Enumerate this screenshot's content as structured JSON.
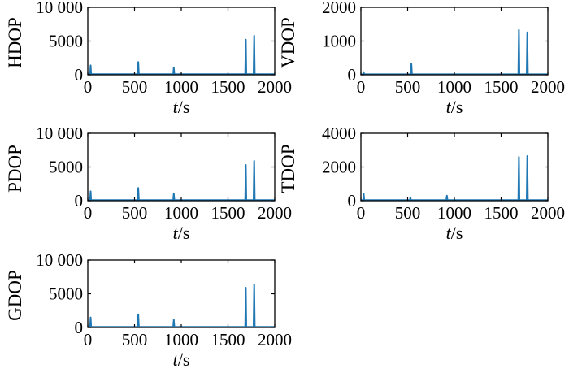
{
  "figure": {
    "line_color": "#1f77b4",
    "axis_color": "#000000",
    "background": "#ffffff"
  },
  "chart_data": [
    {
      "type": "line",
      "panel": "top-left",
      "xlabel_var": "t",
      "xlabel_unit": "/s",
      "ylabel": "HDOP",
      "xlim": [
        0,
        2000
      ],
      "ylim": [
        0,
        10000
      ],
      "x_ticks": [
        "0",
        "500",
        "1000",
        "1500",
        "2000"
      ],
      "y_ticks": [
        "0",
        "5000",
        "10 000"
      ],
      "grid": false,
      "baseline": 80,
      "spikes": [
        {
          "x": 30,
          "y": 1400
        },
        {
          "x": 540,
          "y": 1900
        },
        {
          "x": 920,
          "y": 1100
        },
        {
          "x": 1690,
          "y": 5200
        },
        {
          "x": 1780,
          "y": 5800
        }
      ]
    },
    {
      "type": "line",
      "panel": "top-right",
      "xlabel_var": "t",
      "xlabel_unit": "/s",
      "ylabel": "VDOP",
      "xlim": [
        0,
        2000
      ],
      "ylim": [
        0,
        2000
      ],
      "x_ticks": [
        "0",
        "500",
        "1000",
        "1500",
        "2000"
      ],
      "y_ticks": [
        "0",
        "1000",
        "2000"
      ],
      "grid": false,
      "baseline": 15,
      "spikes": [
        {
          "x": 30,
          "y": 80
        },
        {
          "x": 540,
          "y": 330
        },
        {
          "x": 1690,
          "y": 1330
        },
        {
          "x": 1780,
          "y": 1260
        }
      ]
    },
    {
      "type": "line",
      "panel": "middle-left",
      "xlabel_var": "t",
      "xlabel_unit": "/s",
      "ylabel": "PDOP",
      "xlim": [
        0,
        2000
      ],
      "ylim": [
        0,
        10000
      ],
      "x_ticks": [
        "0",
        "500",
        "1000",
        "1500",
        "2000"
      ],
      "y_ticks": [
        "0",
        "5000",
        "10 000"
      ],
      "grid": false,
      "baseline": 80,
      "spikes": [
        {
          "x": 30,
          "y": 1400
        },
        {
          "x": 540,
          "y": 1900
        },
        {
          "x": 920,
          "y": 1100
        },
        {
          "x": 1690,
          "y": 5300
        },
        {
          "x": 1780,
          "y": 5900
        }
      ]
    },
    {
      "type": "line",
      "panel": "middle-right",
      "xlabel_var": "t",
      "xlabel_unit": "/s",
      "ylabel": "TDOP",
      "xlim": [
        0,
        2000
      ],
      "ylim": [
        0,
        4000
      ],
      "x_ticks": [
        "0",
        "500",
        "1000",
        "1500",
        "2000"
      ],
      "y_ticks": [
        "0",
        "2000",
        "4000"
      ],
      "grid": false,
      "baseline": 40,
      "spikes": [
        {
          "x": 30,
          "y": 420
        },
        {
          "x": 530,
          "y": 200
        },
        {
          "x": 920,
          "y": 300
        },
        {
          "x": 1690,
          "y": 2600
        },
        {
          "x": 1780,
          "y": 2650
        }
      ]
    },
    {
      "type": "line",
      "panel": "bottom-left",
      "xlabel_var": "t",
      "xlabel_unit": "/s",
      "ylabel": "GDOP",
      "xlim": [
        0,
        2000
      ],
      "ylim": [
        0,
        10000
      ],
      "x_ticks": [
        "0",
        "500",
        "1000",
        "1500",
        "2000"
      ],
      "y_ticks": [
        "0",
        "5000",
        "10 000"
      ],
      "grid": false,
      "baseline": 100,
      "spikes": [
        {
          "x": 30,
          "y": 1500
        },
        {
          "x": 540,
          "y": 1950
        },
        {
          "x": 920,
          "y": 1150
        },
        {
          "x": 1690,
          "y": 5900
        },
        {
          "x": 1780,
          "y": 6400
        }
      ]
    }
  ]
}
